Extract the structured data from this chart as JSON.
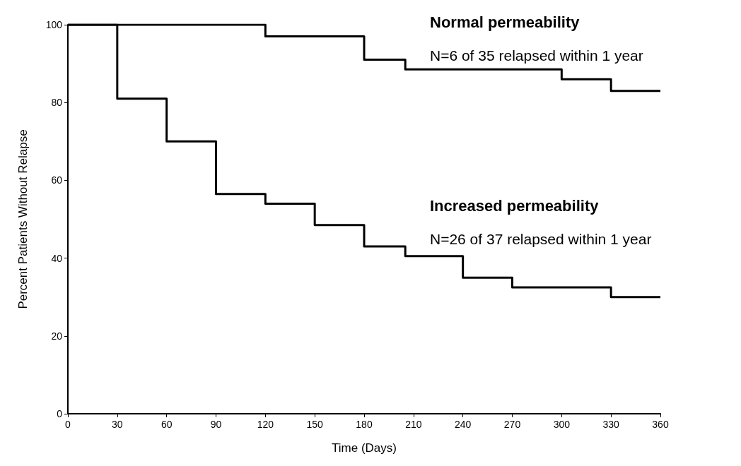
{
  "chart_data": {
    "type": "step",
    "xlabel": "Time (Days)",
    "ylabel": "Percent Patients Without Relapse",
    "xlim": [
      0,
      360
    ],
    "xticks": [
      0,
      30,
      60,
      90,
      120,
      150,
      180,
      210,
      240,
      270,
      300,
      330,
      360
    ],
    "ylim": [
      0,
      100
    ],
    "yticks": [
      0,
      20,
      40,
      60,
      80,
      100
    ],
    "grid": false,
    "marker": "none",
    "legend": false,
    "series": [
      {
        "name": "Normal permeability",
        "color": "#000000",
        "x": [
          0,
          120,
          180,
          205,
          300,
          330,
          360
        ],
        "values": [
          100,
          97,
          91,
          88.5,
          86,
          83,
          83
        ]
      },
      {
        "name": "Increased permeability",
        "color": "#000000",
        "x": [
          0,
          30,
          60,
          90,
          120,
          150,
          180,
          205,
          240,
          270,
          330,
          360
        ],
        "values": [
          100,
          81,
          70,
          56.5,
          54,
          48.5,
          43,
          40.5,
          35,
          32.5,
          30,
          30
        ]
      }
    ],
    "annotations": [
      "N=6 of 35 relapsed within 1 year",
      "N=26 of 37 relapsed within 1 year"
    ]
  }
}
